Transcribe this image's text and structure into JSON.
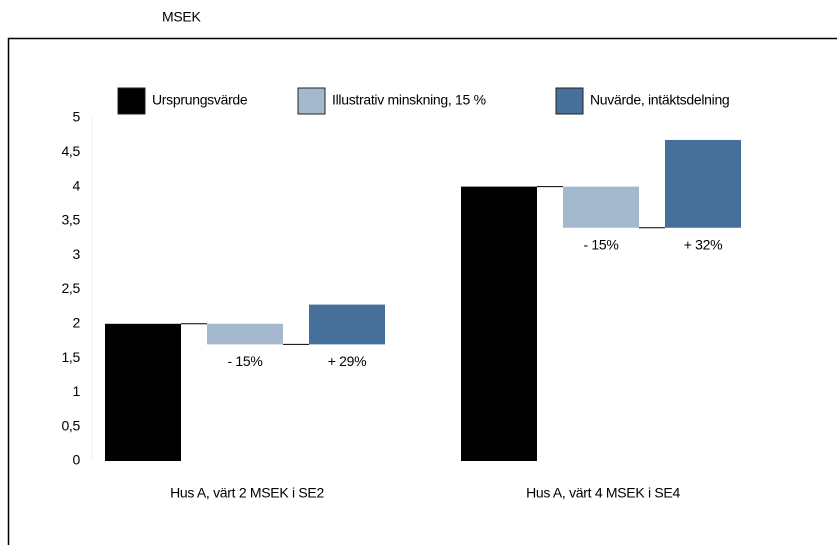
{
  "chart_data": {
    "type": "waterfall",
    "y_label": "MSEK",
    "categories": [
      "Hus A, värt 2 MSEK i SE2",
      "Hus A, värt 4 MSEK i SE4"
    ],
    "series": [
      {
        "name": "Ursprungsvärde",
        "color": "#000000",
        "values": [
          2,
          4
        ]
      },
      {
        "name": "Illustrativ minskning, 15 %",
        "color": "#a4b9cd",
        "values": [
          -0.3,
          -0.6
        ],
        "annotations": [
          "- 15%",
          "- 15%"
        ]
      },
      {
        "name": "Nuvärde, intäktsdelning",
        "color": "#467099",
        "values": [
          0.58,
          1.28
        ],
        "annotations": [
          "+ 29%",
          "+ 32%"
        ]
      }
    ],
    "ylim": [
      0,
      5
    ],
    "yticks": [
      0,
      {
        "value": 0.5,
        "label": "0,5"
      },
      1,
      {
        "value": 1.5,
        "label": "1,5"
      },
      2,
      {
        "value": 2.5,
        "label": "2,5"
      },
      3,
      {
        "value": 3.5,
        "label": "3,5"
      },
      4,
      {
        "value": 4.5,
        "label": "4,5"
      },
      5
    ],
    "legend": "top"
  }
}
